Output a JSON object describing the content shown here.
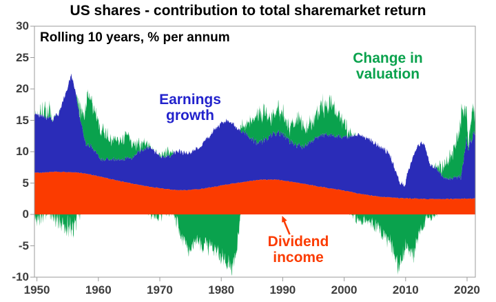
{
  "header": {
    "title": "US shares - contribution to total sharemarket return",
    "subtitle": "Rolling 10 years, % per annum"
  },
  "chart_data": {
    "type": "area",
    "stacked": true,
    "title": "US shares - contribution to total sharemarket return",
    "subtitle": "Rolling 10 years, % per annum",
    "ylabel": "% per annum",
    "xlabel": "",
    "grid": false,
    "legend_position": "inline-annotations",
    "x_range": [
      1949.6,
      2021.35
    ],
    "y_range": [
      -10,
      30
    ],
    "y_ticks": [
      30,
      25,
      20,
      15,
      10,
      5,
      0,
      -5,
      -10
    ],
    "x_ticks": [
      1950,
      1960,
      1970,
      1980,
      1990,
      2000,
      2010,
      2020
    ],
    "axis_color": "#9b9b9b",
    "tick_label_color": "#3d3d3d",
    "series": [
      {
        "name": "Dividend income",
        "color": "#fb3b00",
        "role": "base",
        "noise_amp": 0.07,
        "anchors": [
          [
            1949.6,
            6.6
          ],
          [
            1953,
            6.8
          ],
          [
            1956,
            6.7
          ],
          [
            1958,
            6.5
          ],
          [
            1960,
            6.1
          ],
          [
            1963,
            5.4
          ],
          [
            1966,
            4.8
          ],
          [
            1969,
            4.3
          ],
          [
            1971,
            4.05
          ],
          [
            1973,
            3.85
          ],
          [
            1975,
            3.9
          ],
          [
            1977,
            4.1
          ],
          [
            1980,
            4.6
          ],
          [
            1983,
            5.1
          ],
          [
            1986,
            5.5
          ],
          [
            1989,
            5.55
          ],
          [
            1992,
            5.1
          ],
          [
            1995,
            4.6
          ],
          [
            1998,
            4.1
          ],
          [
            2000,
            3.8
          ],
          [
            2003,
            3.2
          ],
          [
            2006,
            2.8
          ],
          [
            2009,
            2.6
          ],
          [
            2012,
            2.5
          ],
          [
            2016,
            2.45
          ],
          [
            2021.4,
            2.5
          ]
        ]
      },
      {
        "name": "Earnings growth",
        "color": "#2a2cb8",
        "role": "stacked-on-base",
        "amp_anchors": [
          [
            1949.6,
            0.55
          ],
          [
            1980,
            0.55
          ],
          [
            1985,
            0.8
          ],
          [
            1993,
            0.7
          ],
          [
            2000,
            0.5
          ],
          [
            2008,
            0.6
          ],
          [
            2013,
            0.5
          ],
          [
            2018,
            0.6
          ],
          [
            2019.5,
            1.3
          ],
          [
            2021.4,
            1.3
          ]
        ],
        "anchors": [
          [
            1949.6,
            9.6
          ],
          [
            1950.5,
            9.2
          ],
          [
            1951.5,
            8.8
          ],
          [
            1952.5,
            8.3
          ],
          [
            1953.5,
            9.2
          ],
          [
            1954.5,
            12.0
          ],
          [
            1955.6,
            15.6
          ],
          [
            1956.2,
            13.5
          ],
          [
            1957,
            8.6
          ],
          [
            1958,
            4.7
          ],
          [
            1959,
            4.4
          ],
          [
            1960.4,
            2.7
          ],
          [
            1961.3,
            3.1
          ],
          [
            1962.5,
            3.2
          ],
          [
            1964,
            3.6
          ],
          [
            1965.5,
            4.1
          ],
          [
            1967,
            5.6
          ],
          [
            1968,
            6.2
          ],
          [
            1969,
            5.9
          ],
          [
            1970,
            5.0
          ],
          [
            1971,
            5.3
          ],
          [
            1972,
            5.6
          ],
          [
            1973,
            6.3
          ],
          [
            1974,
            6.0
          ],
          [
            1975,
            5.9
          ],
          [
            1976,
            6.6
          ],
          [
            1977,
            7.1
          ],
          [
            1978,
            8.0
          ],
          [
            1979,
            9.2
          ],
          [
            1980,
            9.9
          ],
          [
            1981,
            10.3
          ],
          [
            1982,
            9.4
          ],
          [
            1983,
            8.2
          ],
          [
            1984,
            7.6
          ],
          [
            1985,
            6.6
          ],
          [
            1986,
            6.0
          ],
          [
            1987,
            6.4
          ],
          [
            1988,
            7.0
          ],
          [
            1989,
            7.4
          ],
          [
            1990,
            7.4
          ],
          [
            1991,
            6.6
          ],
          [
            1992,
            6.0
          ],
          [
            1993,
            5.9
          ],
          [
            1994,
            6.4
          ],
          [
            1995,
            7.2
          ],
          [
            1996,
            8.0
          ],
          [
            1997,
            8.4
          ],
          [
            1999,
            8.5
          ],
          [
            2001,
            8.7
          ],
          [
            2002,
            9.4
          ],
          [
            2003,
            9.2
          ],
          [
            2004,
            8.9
          ],
          [
            2005,
            8.4
          ],
          [
            2006,
            7.9
          ],
          [
            2007,
            7.3
          ],
          [
            2008,
            5.5
          ],
          [
            2009,
            2.6
          ],
          [
            2009.8,
            1.8
          ],
          [
            2010.5,
            4.5
          ],
          [
            2011.5,
            7.5
          ],
          [
            2012.4,
            9.0
          ],
          [
            2013,
            8.6
          ],
          [
            2014,
            5.5
          ],
          [
            2015,
            4.8
          ],
          [
            2016,
            3.6
          ],
          [
            2017,
            3.2
          ],
          [
            2018,
            3.4
          ],
          [
            2019,
            3.4
          ],
          [
            2019.6,
            6.5
          ],
          [
            2019.9,
            9.5
          ],
          [
            2020.2,
            8.0
          ],
          [
            2020.5,
            9.0
          ],
          [
            2020.9,
            10.0
          ],
          [
            2021.15,
            11.0
          ],
          [
            2021.4,
            9.5
          ]
        ]
      },
      {
        "name": "Change in valuation",
        "color": "#0aa24d",
        "role": "stacked-top-or-below-zero-when-negative",
        "amp_anchors": [
          [
            1949.6,
            2.8
          ],
          [
            1957,
            2.8
          ],
          [
            1958,
            1.8
          ],
          [
            1961,
            1.4
          ],
          [
            1966,
            1.2
          ],
          [
            1972,
            1.4
          ],
          [
            1974,
            1.8
          ],
          [
            1982,
            1.9
          ],
          [
            1984,
            2.2
          ],
          [
            1999,
            2.0
          ],
          [
            2001,
            1.2
          ],
          [
            2004,
            1.4
          ],
          [
            2006,
            1.8
          ],
          [
            2009,
            2.0
          ],
          [
            2012,
            1.8
          ],
          [
            2014,
            1.3
          ],
          [
            2017,
            1.5
          ],
          [
            2019,
            2.2
          ],
          [
            2021.4,
            2.2
          ]
        ],
        "anchors": [
          [
            1949.6,
            -1.8
          ],
          [
            1950.7,
            0.3
          ],
          [
            1951.5,
            0.8
          ],
          [
            1952.5,
            0.0
          ],
          [
            1953.5,
            -0.6
          ],
          [
            1954.5,
            -1.2
          ],
          [
            1955.6,
            -2.8
          ],
          [
            1956.5,
            -0.5
          ],
          [
            1957.5,
            3.0
          ],
          [
            1958.3,
            8.5
          ],
          [
            1959,
            6.5
          ],
          [
            1960,
            5.0
          ],
          [
            1961,
            4.5
          ],
          [
            1962,
            3.0
          ],
          [
            1963,
            3.0
          ],
          [
            1964,
            3.3
          ],
          [
            1965,
            3.5
          ],
          [
            1966,
            1.5
          ],
          [
            1967,
            1.0
          ],
          [
            1968,
            0.8
          ],
          [
            1969,
            -0.2
          ],
          [
            1970,
            -0.6
          ],
          [
            1971,
            0.6
          ],
          [
            1972,
            0.3
          ],
          [
            1973,
            -1.8
          ],
          [
            1974,
            -4.5
          ],
          [
            1975,
            -6.0
          ],
          [
            1976,
            -3.8
          ],
          [
            1977,
            -4.6
          ],
          [
            1978,
            -5.2
          ],
          [
            1979,
            -5.8
          ],
          [
            1980,
            -6.4
          ],
          [
            1981,
            -8.0
          ],
          [
            1981.7,
            -8.5
          ],
          [
            1982.5,
            -6.0
          ],
          [
            1983.2,
            0.5
          ],
          [
            1984,
            1.5
          ],
          [
            1985,
            3.2
          ],
          [
            1986,
            4.6
          ],
          [
            1987,
            4.4
          ],
          [
            1988,
            2.6
          ],
          [
            1989,
            3.8
          ],
          [
            1990,
            3.0
          ],
          [
            1991,
            2.6
          ],
          [
            1992,
            3.2
          ],
          [
            1993,
            3.6
          ],
          [
            1994,
            2.6
          ],
          [
            1995,
            3.6
          ],
          [
            1996,
            4.4
          ],
          [
            1997,
            4.8
          ],
          [
            1998,
            4.6
          ],
          [
            1999,
            3.6
          ],
          [
            2000,
            2.0
          ],
          [
            2001,
            0.6
          ],
          [
            2002,
            -0.6
          ],
          [
            2003,
            -1.0
          ],
          [
            2004,
            -1.2
          ],
          [
            2005,
            -1.8
          ],
          [
            2006,
            -2.8
          ],
          [
            2007,
            -3.6
          ],
          [
            2008,
            -5.5
          ],
          [
            2008.9,
            -8.8
          ],
          [
            2009.5,
            -7.0
          ],
          [
            2010,
            -5.0
          ],
          [
            2011.3,
            -6.5
          ],
          [
            2012,
            -3.5
          ],
          [
            2013,
            -1.5
          ],
          [
            2014,
            -0.2
          ],
          [
            2015,
            0.6
          ],
          [
            2016,
            1.2
          ],
          [
            2017,
            3.2
          ],
          [
            2018,
            4.4
          ],
          [
            2018.8,
            8.0
          ],
          [
            2019.2,
            10.5
          ],
          [
            2019.6,
            6.0
          ],
          [
            2020,
            3.0
          ],
          [
            2020.25,
            -0.8
          ],
          [
            2020.5,
            2.5
          ],
          [
            2020.8,
            4.0
          ],
          [
            2021.1,
            3.5
          ],
          [
            2021.4,
            3.0
          ]
        ]
      }
    ],
    "annotations": {
      "earnings": {
        "text": "Earnings\ngrowth",
        "color": "#2222cc"
      },
      "valuation": {
        "text": "Change in\nvaluation",
        "color": "#0aa24d"
      },
      "dividend": {
        "text": "Dividend\nincome",
        "color": "#fb3b00",
        "arrow": "points from label up to red dividend band"
      }
    }
  }
}
